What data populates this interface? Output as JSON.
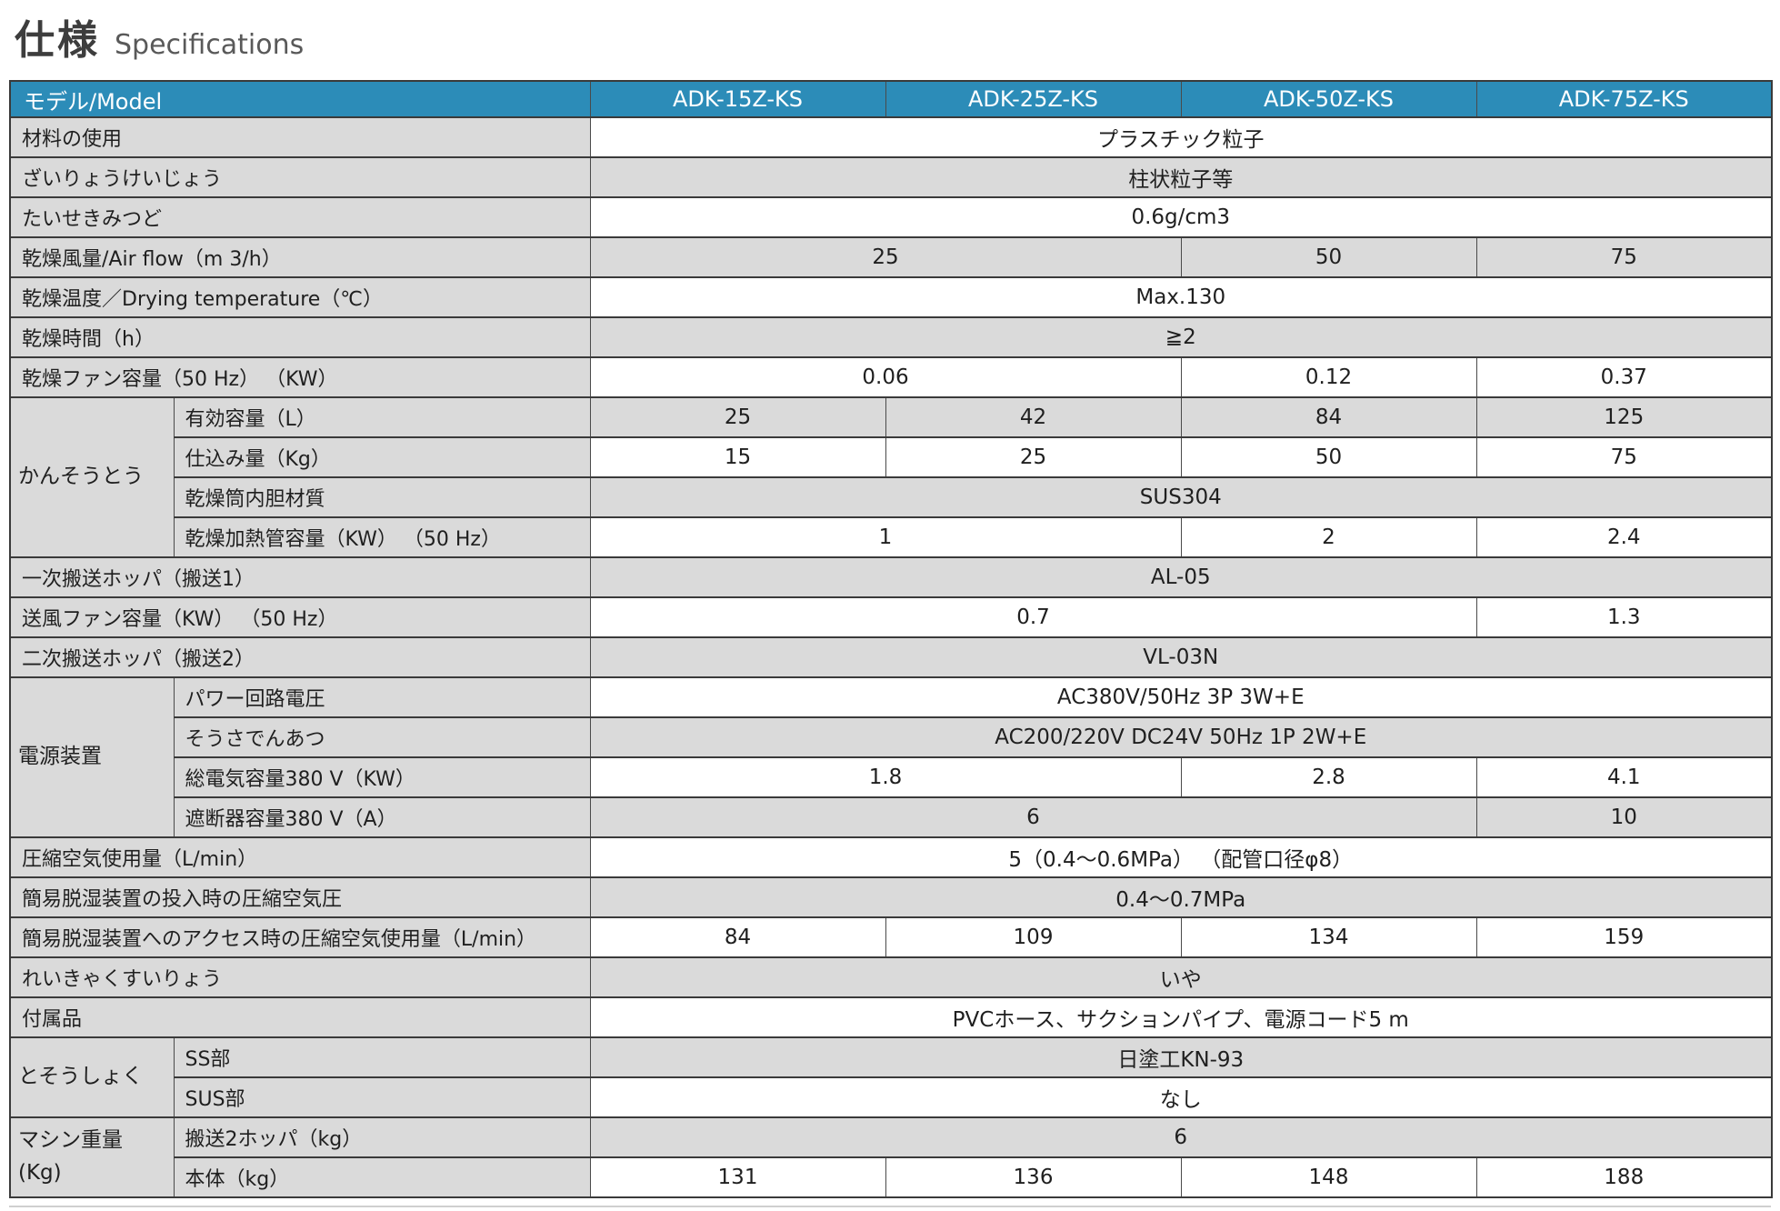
{
  "title": {
    "jp": "仕様",
    "en": "Specifications"
  },
  "colors": {
    "header_bg": "#2C8CB8",
    "header_text": "#FFFFFF",
    "row_gray": "#DADADA",
    "row_white": "#FFFFFF",
    "border": "#3A3A3A",
    "title_jp": "#3D3D3D",
    "title_en": "#595959",
    "text": "#1F1F1F"
  },
  "table": {
    "model_header": "モデル/Model",
    "models": [
      "ADK-15Z-KS",
      "ADK-25Z-KS",
      "ADK-50Z-KS",
      "ADK-75Z-KS"
    ],
    "rows": [
      {
        "label": "材料の使用",
        "cells": [
          {
            "t": "プラスチック粒子",
            "s": 4
          }
        ]
      },
      {
        "label": "ざいりょうけいじょう",
        "cells": [
          {
            "t": "柱状粒子等",
            "s": 4
          }
        ]
      },
      {
        "label": "たいせきみつど",
        "cells": [
          {
            "t": "0.6g/cm3",
            "s": 4
          }
        ]
      },
      {
        "label": "乾燥風量/Air flow（m 3/h）",
        "cells": [
          {
            "t": "25",
            "s": 2
          },
          {
            "t": "50",
            "s": 1
          },
          {
            "t": "75",
            "s": 1
          }
        ]
      },
      {
        "label": "乾燥温度／Drying temperature（℃）",
        "cells": [
          {
            "t": "Max.130",
            "s": 4
          }
        ]
      },
      {
        "label": "乾燥時間（h）",
        "cells": [
          {
            "t": "≧2",
            "s": 4
          }
        ]
      },
      {
        "label": "乾燥ファン容量（50 Hz） （KW）",
        "cells": [
          {
            "t": "0.06",
            "s": 2
          },
          {
            "t": "0.12",
            "s": 1
          },
          {
            "t": "0.37",
            "s": 1
          }
        ]
      },
      {
        "group": {
          "label": "かんそうとう",
          "rowspan": 4
        },
        "sub": true,
        "label": "有効容量（L）",
        "cells": [
          {
            "t": "25",
            "s": 1
          },
          {
            "t": "42",
            "s": 1
          },
          {
            "t": "84",
            "s": 1
          },
          {
            "t": "125",
            "s": 1
          }
        ]
      },
      {
        "sub": true,
        "label": "仕込み量（Kg）",
        "cells": [
          {
            "t": "15",
            "s": 1
          },
          {
            "t": "25",
            "s": 1
          },
          {
            "t": "50",
            "s": 1
          },
          {
            "t": "75",
            "s": 1
          }
        ]
      },
      {
        "sub": true,
        "label": "乾燥筒内胆材質",
        "cells": [
          {
            "t": "SUS304",
            "s": 4
          }
        ]
      },
      {
        "sub": true,
        "label": "乾燥加熱管容量（KW） （50 Hz）",
        "cells": [
          {
            "t": "1",
            "s": 2
          },
          {
            "t": "2",
            "s": 1
          },
          {
            "t": "2.4",
            "s": 1
          }
        ]
      },
      {
        "label": "一次搬送ホッパ（搬送1）",
        "cells": [
          {
            "t": "AL-05",
            "s": 4
          }
        ]
      },
      {
        "label": "送風ファン容量（KW） （50 Hz）",
        "cells": [
          {
            "t": "0.7",
            "s": 3
          },
          {
            "t": "1.3",
            "s": 1
          }
        ]
      },
      {
        "label": "二次搬送ホッパ（搬送2）",
        "cells": [
          {
            "t": "VL-03N",
            "s": 4
          }
        ]
      },
      {
        "group": {
          "label": "電源装置",
          "rowspan": 4
        },
        "sub": true,
        "label": "パワー回路電圧",
        "cells": [
          {
            "t": "AC380V/50Hz 3P 3W+E",
            "s": 4
          }
        ]
      },
      {
        "sub": true,
        "label": "そうさでんあつ",
        "cells": [
          {
            "t": "AC200/220V DC24V 50Hz 1P 2W+E",
            "s": 4
          }
        ]
      },
      {
        "sub": true,
        "label": "総電気容量380 V（KW）",
        "cells": [
          {
            "t": "1.8",
            "s": 2
          },
          {
            "t": "2.8",
            "s": 1
          },
          {
            "t": "4.1",
            "s": 1
          }
        ]
      },
      {
        "sub": true,
        "label": "遮断器容量380 V（A）",
        "cells": [
          {
            "t": "6",
            "s": 3
          },
          {
            "t": "10",
            "s": 1
          }
        ]
      },
      {
        "label": "圧縮空気使用量（L/min）",
        "cells": [
          {
            "t": "5（0.4～0.6MPa） （配管口径φ8）",
            "s": 4
          }
        ]
      },
      {
        "label": "簡易脱湿装置の投入時の圧縮空気圧",
        "cells": [
          {
            "t": "0.4～0.7MPa",
            "s": 4
          }
        ]
      },
      {
        "label": "簡易脱湿装置へのアクセス時の圧縮空気使用量（L/min）",
        "cells": [
          {
            "t": "84",
            "s": 1
          },
          {
            "t": "109",
            "s": 1
          },
          {
            "t": "134",
            "s": 1
          },
          {
            "t": "159",
            "s": 1
          }
        ]
      },
      {
        "label": "れいきゃくすいりょう",
        "cells": [
          {
            "t": "いや",
            "s": 4
          }
        ]
      },
      {
        "label": "付属品",
        "cells": [
          {
            "t": "PVCホース、サクションパイプ、電源コード5 m",
            "s": 4
          }
        ]
      },
      {
        "group": {
          "label": "とそうしょく",
          "rowspan": 2
        },
        "sub": true,
        "label": "SS部",
        "cells": [
          {
            "t": "日塗工KN-93",
            "s": 4
          }
        ]
      },
      {
        "sub": true,
        "label": "SUS部",
        "cells": [
          {
            "t": "なし",
            "s": 4
          }
        ]
      },
      {
        "group": {
          "label": "マシン重量\n(Kg)",
          "rowspan": 2
        },
        "sub": true,
        "label": "搬送2ホッパ（kg）",
        "cells": [
          {
            "t": "6",
            "s": 4
          }
        ]
      },
      {
        "sub": true,
        "label": "本体（kg）",
        "cells": [
          {
            "t": "131",
            "s": 1
          },
          {
            "t": "136",
            "s": 1
          },
          {
            "t": "148",
            "s": 1
          },
          {
            "t": "188",
            "s": 1
          }
        ]
      }
    ]
  }
}
